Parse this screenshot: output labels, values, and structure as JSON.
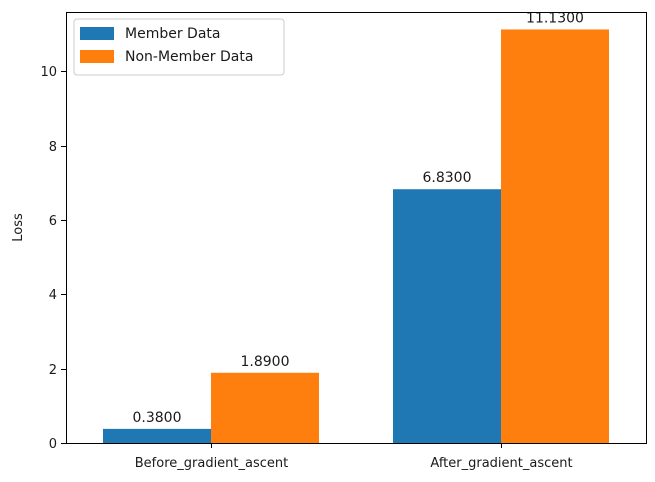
{
  "chart_data": {
    "type": "bar",
    "title": "",
    "xlabel": "",
    "ylabel": "Loss",
    "categories": [
      "Before_gradient_ascent",
      "After_gradient_ascent"
    ],
    "series": [
      {
        "name": "Member Data",
        "values": [
          0.38,
          6.83
        ],
        "labels": [
          "0.3800",
          "6.8300"
        ],
        "color": "#1f77b4"
      },
      {
        "name": "Non-Member Data",
        "values": [
          1.89,
          11.13
        ],
        "labels": [
          "1.8900",
          "11.1300"
        ],
        "color": "#ff7f0e"
      }
    ],
    "ylim": [
      0,
      11.6
    ],
    "yticks": [
      0,
      2,
      4,
      6,
      8,
      10
    ],
    "ytick_labels": [
      "0",
      "2",
      "4",
      "6",
      "8",
      "10"
    ],
    "grid": false,
    "legend_position": "top-left"
  }
}
